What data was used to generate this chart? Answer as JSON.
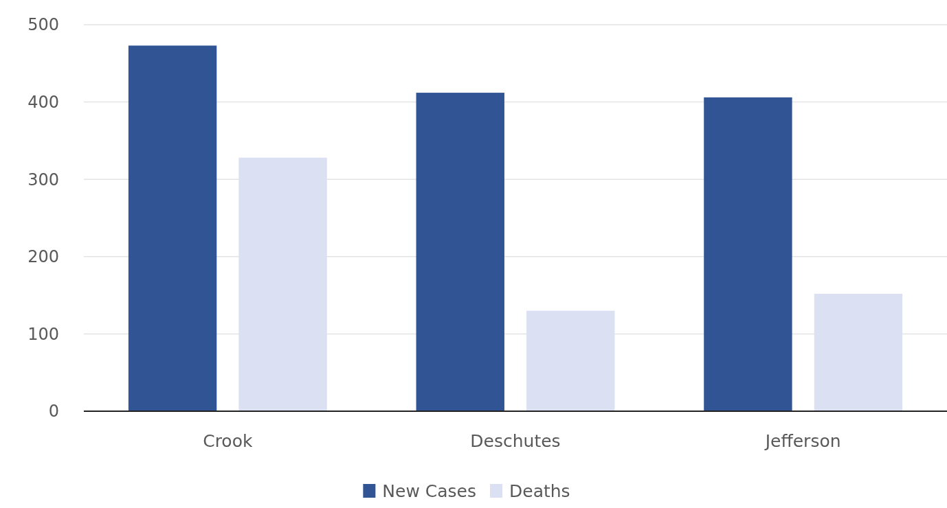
{
  "chart_data": {
    "type": "bar",
    "categories": [
      "Crook",
      "Deschutes",
      "Jefferson"
    ],
    "series": [
      {
        "name": "New Cases",
        "color": "#315494",
        "values": [
          473,
          412,
          406
        ]
      },
      {
        "name": "Deaths",
        "color": "#dbe1f2",
        "values": [
          328,
          130,
          152
        ]
      }
    ],
    "ylim": [
      0,
      500
    ],
    "yticks": [
      0,
      100,
      200,
      300,
      400,
      500
    ],
    "grid": "y",
    "legend": "bottom"
  }
}
